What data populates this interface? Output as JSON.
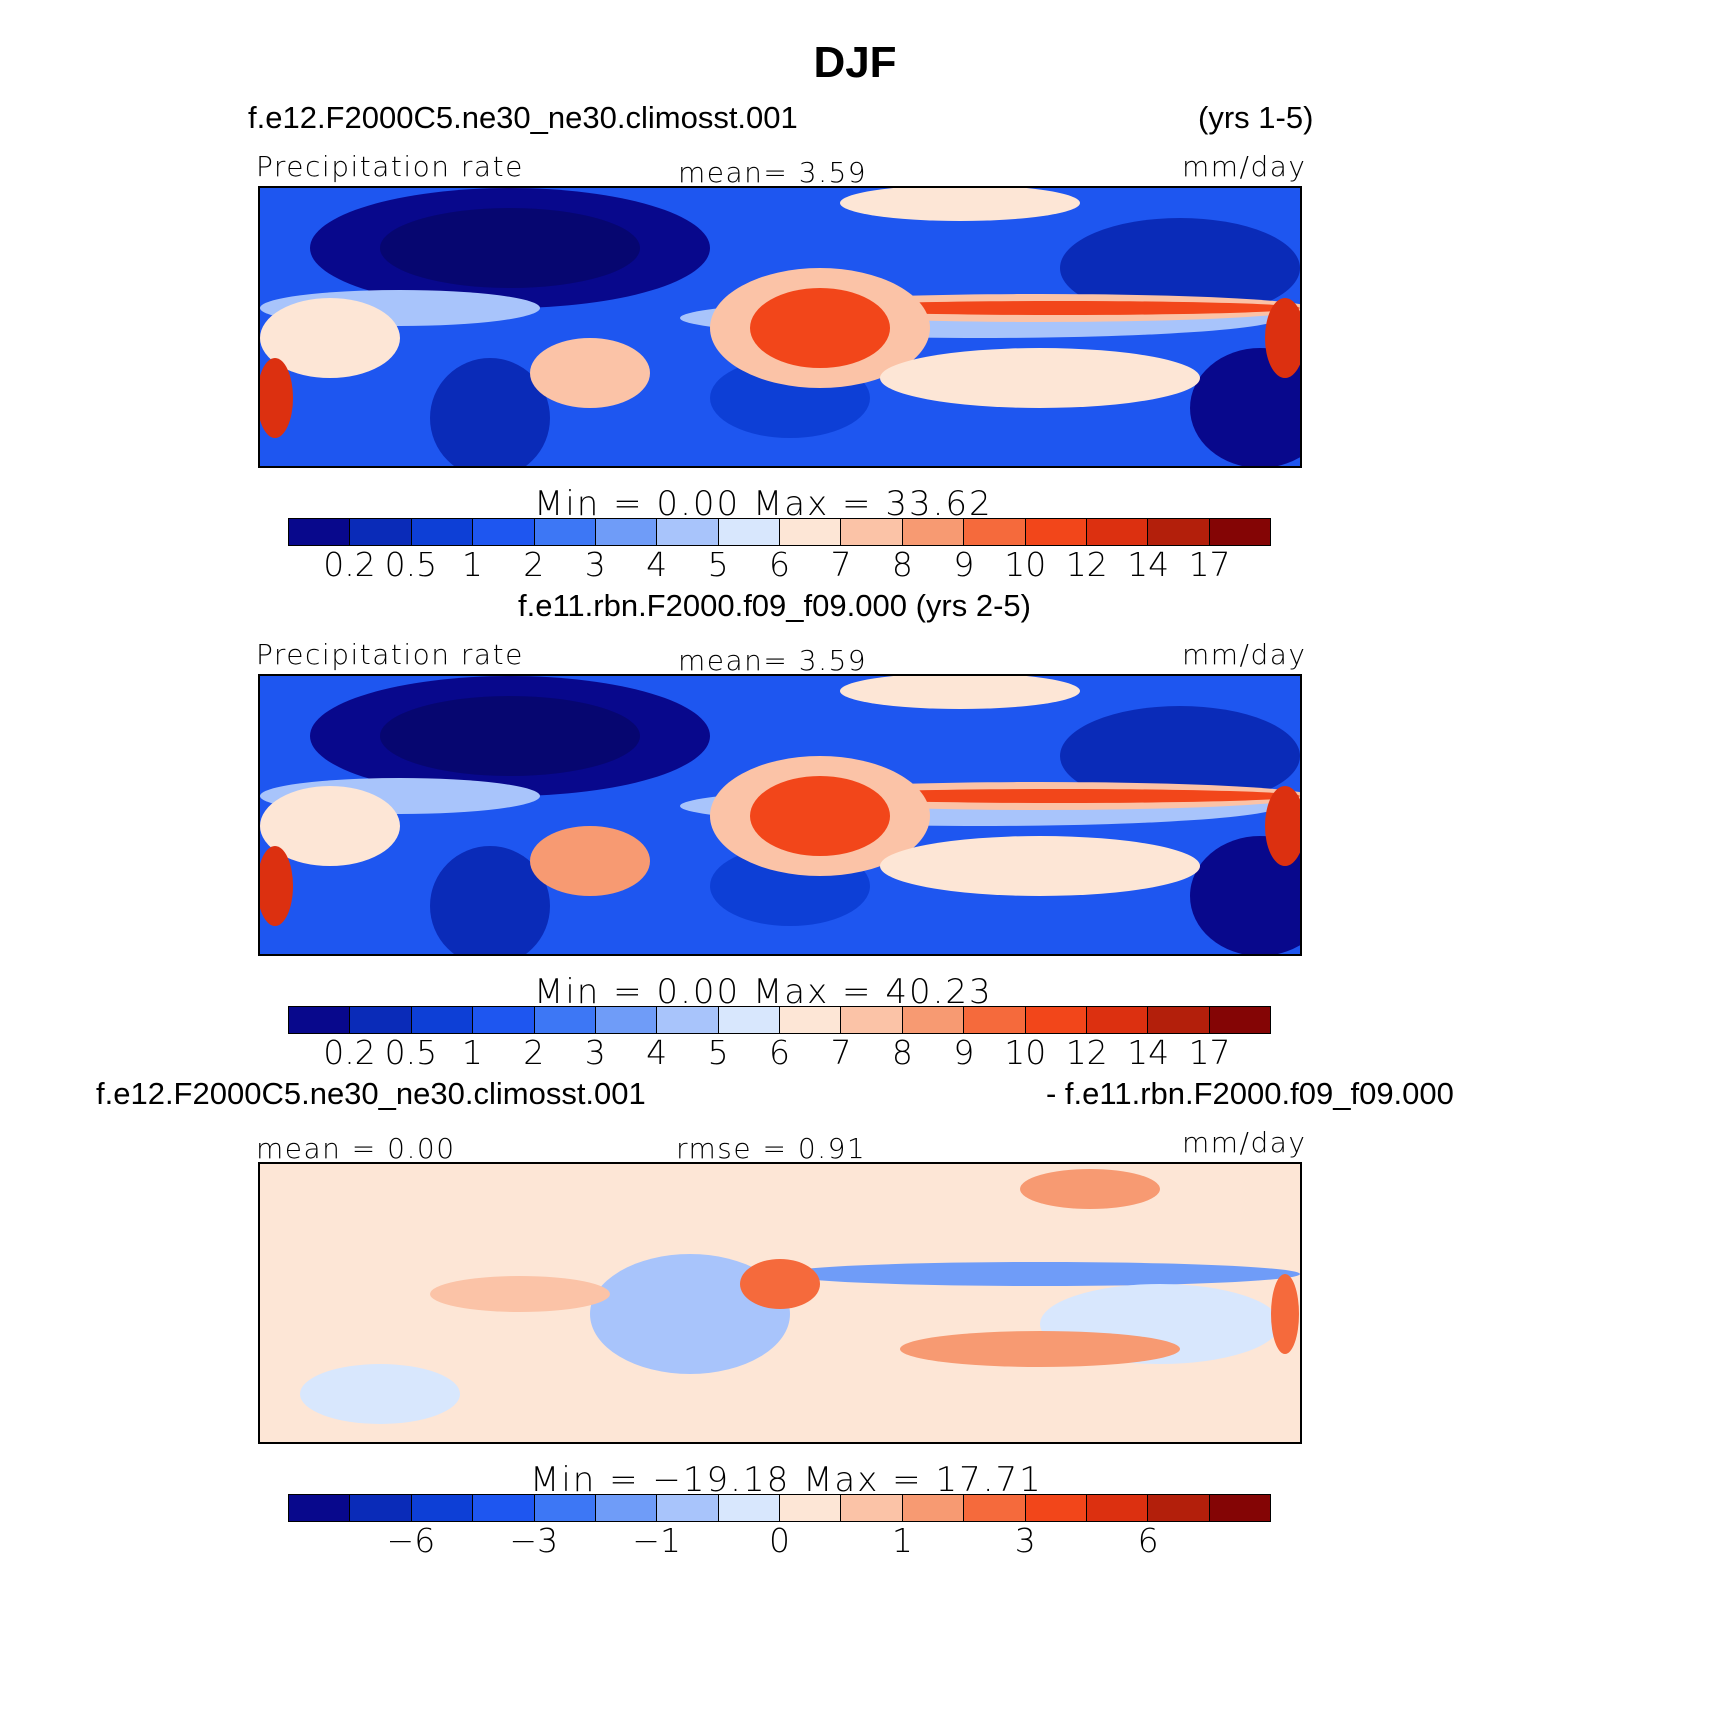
{
  "title": "DJF",
  "colors": {
    "levels": [
      "#08088c",
      "#0a2bb8",
      "#0d3fd6",
      "#1e56f0",
      "#3d77f5",
      "#6f9cf8",
      "#a8c4fb",
      "#d8e7fd",
      "#fde6d6",
      "#fbc3a7",
      "#f79a72",
      "#f56a3c",
      "#f2461a",
      "#dc3010",
      "#b31f0b",
      "#840505"
    ],
    "land": "#000000"
  },
  "panels": [
    {
      "case_title": "f.e12.F2000C5.ne30_ne30.climosst.001",
      "years": "(yrs 1-5)",
      "left_label": "Precipitation rate",
      "center_label": "mean=    3.59",
      "right_label": "mm/day",
      "minmax": "Min  =     0.00  Max  =   33.62",
      "palette": "abs"
    },
    {
      "case_title": "f.e11.rbn.F2000.f09_f09.000 (yrs 2-5)",
      "left_label": "Precipitation rate",
      "center_label": "mean=    3.59",
      "right_label": "mm/day",
      "minmax": "Min  =     0.00  Max  =   40.23",
      "palette": "abs"
    },
    {
      "case_title_left": "f.e12.F2000C5.ne30_ne30.climosst.001",
      "case_title_right": "- f.e11.rbn.F2000.f09_f09.000",
      "left_label": "mean  =     0.00",
      "center_label": "rmse  =     0.91",
      "right_label": "mm/day",
      "minmax": "Min  = −19.18  Max  =    17.71",
      "palette": "diff"
    }
  ],
  "chart_data": [
    {
      "type": "heatmap",
      "title": "f.e12.F2000C5.ne30_ne30.climosst.001 (yrs 1-5)",
      "variable": "Precipitation rate",
      "units": "mm/day",
      "mean": 3.59,
      "min": 0.0,
      "max": 33.62,
      "contour_levels": [
        0.2,
        0.5,
        1,
        2,
        3,
        4,
        5,
        6,
        7,
        8,
        9,
        10,
        12,
        14,
        17
      ],
      "colorbar_tick_labels": [
        "0.2",
        "0.5",
        "1",
        "2",
        "3",
        "4",
        "5",
        "6",
        "7",
        "8",
        "9",
        "10",
        "12",
        "14",
        "17"
      ]
    },
    {
      "type": "heatmap",
      "title": "f.e11.rbn.F2000.f09_f09.000 (yrs 2-5)",
      "variable": "Precipitation rate",
      "units": "mm/day",
      "mean": 3.59,
      "min": 0.0,
      "max": 40.23,
      "contour_levels": [
        0.2,
        0.5,
        1,
        2,
        3,
        4,
        5,
        6,
        7,
        8,
        9,
        10,
        12,
        14,
        17
      ],
      "colorbar_tick_labels": [
        "0.2",
        "0.5",
        "1",
        "2",
        "3",
        "4",
        "5",
        "6",
        "7",
        "8",
        "9",
        "10",
        "12",
        "14",
        "17"
      ]
    },
    {
      "type": "heatmap",
      "title": "f.e12.F2000C5.ne30_ne30.climosst.001 - f.e11.rbn.F2000.f09_f09.000",
      "units": "mm/day",
      "mean": 0.0,
      "rmse": 0.91,
      "min": -19.18,
      "max": 17.71,
      "colorbar_tick_labels": [
        "−6",
        "−3",
        "−1",
        "0",
        "1",
        "3",
        "6"
      ]
    }
  ]
}
